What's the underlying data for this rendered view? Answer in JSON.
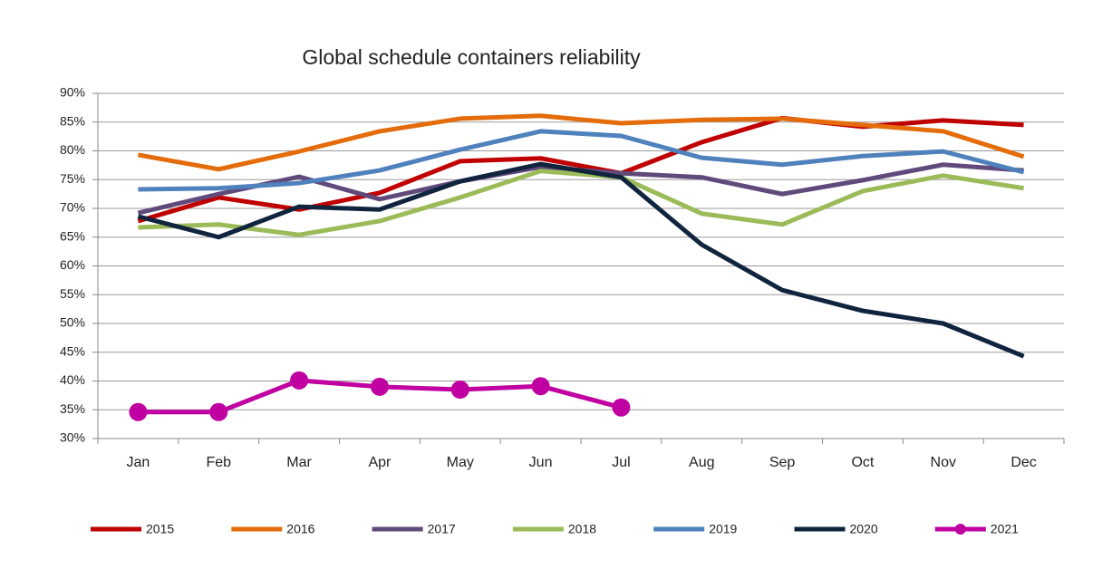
{
  "chart_data": {
    "type": "line",
    "title": "Global schedule containers reliability",
    "categories": [
      "Jan",
      "Feb",
      "Mar",
      "Apr",
      "May",
      "Jun",
      "Jul",
      "Aug",
      "Sep",
      "Oct",
      "Nov",
      "Dec"
    ],
    "ylim": [
      30,
      90
    ],
    "yticks": [
      {
        "value": 30,
        "label": "30%"
      },
      {
        "value": 35,
        "label": "35%"
      },
      {
        "value": 40,
        "label": "40%"
      },
      {
        "value": 45,
        "label": "45%"
      },
      {
        "value": 50,
        "label": "50%"
      },
      {
        "value": 55,
        "label": "55%"
      },
      {
        "value": 60,
        "label": "60%"
      },
      {
        "value": 65,
        "label": "65%"
      },
      {
        "value": 70,
        "label": "70%"
      },
      {
        "value": 75,
        "label": "75%"
      },
      {
        "value": 80,
        "label": "80%"
      },
      {
        "value": 85,
        "label": "85%"
      },
      {
        "value": 90,
        "label": "90%"
      }
    ],
    "grid": true,
    "legend": "bottom",
    "series": [
      {
        "name": "2015",
        "color": "#c00000",
        "values": [
          67.8,
          71.9,
          69.8,
          72.7,
          78.2,
          78.7,
          76.1,
          81.5,
          85.7,
          84.2,
          85.3,
          84.5
        ]
      },
      {
        "name": "2016",
        "color": "#e46c0a",
        "values": [
          79.3,
          76.8,
          79.9,
          83.4,
          85.6,
          86.1,
          84.8,
          85.4,
          85.6,
          84.5,
          83.4,
          79.0
        ]
      },
      {
        "name": "2017",
        "color": "#604a7b",
        "values": [
          69.2,
          72.5,
          75.5,
          71.6,
          74.7,
          77.2,
          76.1,
          75.4,
          72.5,
          74.9,
          77.6,
          76.6
        ]
      },
      {
        "name": "2018",
        "color": "#9bbb59",
        "values": [
          66.7,
          67.2,
          65.4,
          67.8,
          71.9,
          76.5,
          75.4,
          69.1,
          67.2,
          73.0,
          75.7,
          73.5
        ]
      },
      {
        "name": "2019",
        "color": "#4f81bd",
        "values": [
          73.3,
          73.5,
          74.4,
          76.6,
          80.2,
          83.4,
          82.6,
          78.8,
          77.6,
          79.1,
          79.9,
          76.3
        ]
      },
      {
        "name": "2020",
        "color": "#10243e",
        "values": [
          68.6,
          65.0,
          70.3,
          69.8,
          74.7,
          77.7,
          75.4,
          63.7,
          55.8,
          52.2,
          50.0,
          44.3
        ]
      },
      {
        "name": "2021",
        "color": "#c000a0",
        "marker": true,
        "values": [
          34.6,
          34.6,
          40.1,
          39.0,
          38.5,
          39.1,
          35.4,
          null,
          null,
          null,
          null,
          null
        ]
      }
    ]
  }
}
